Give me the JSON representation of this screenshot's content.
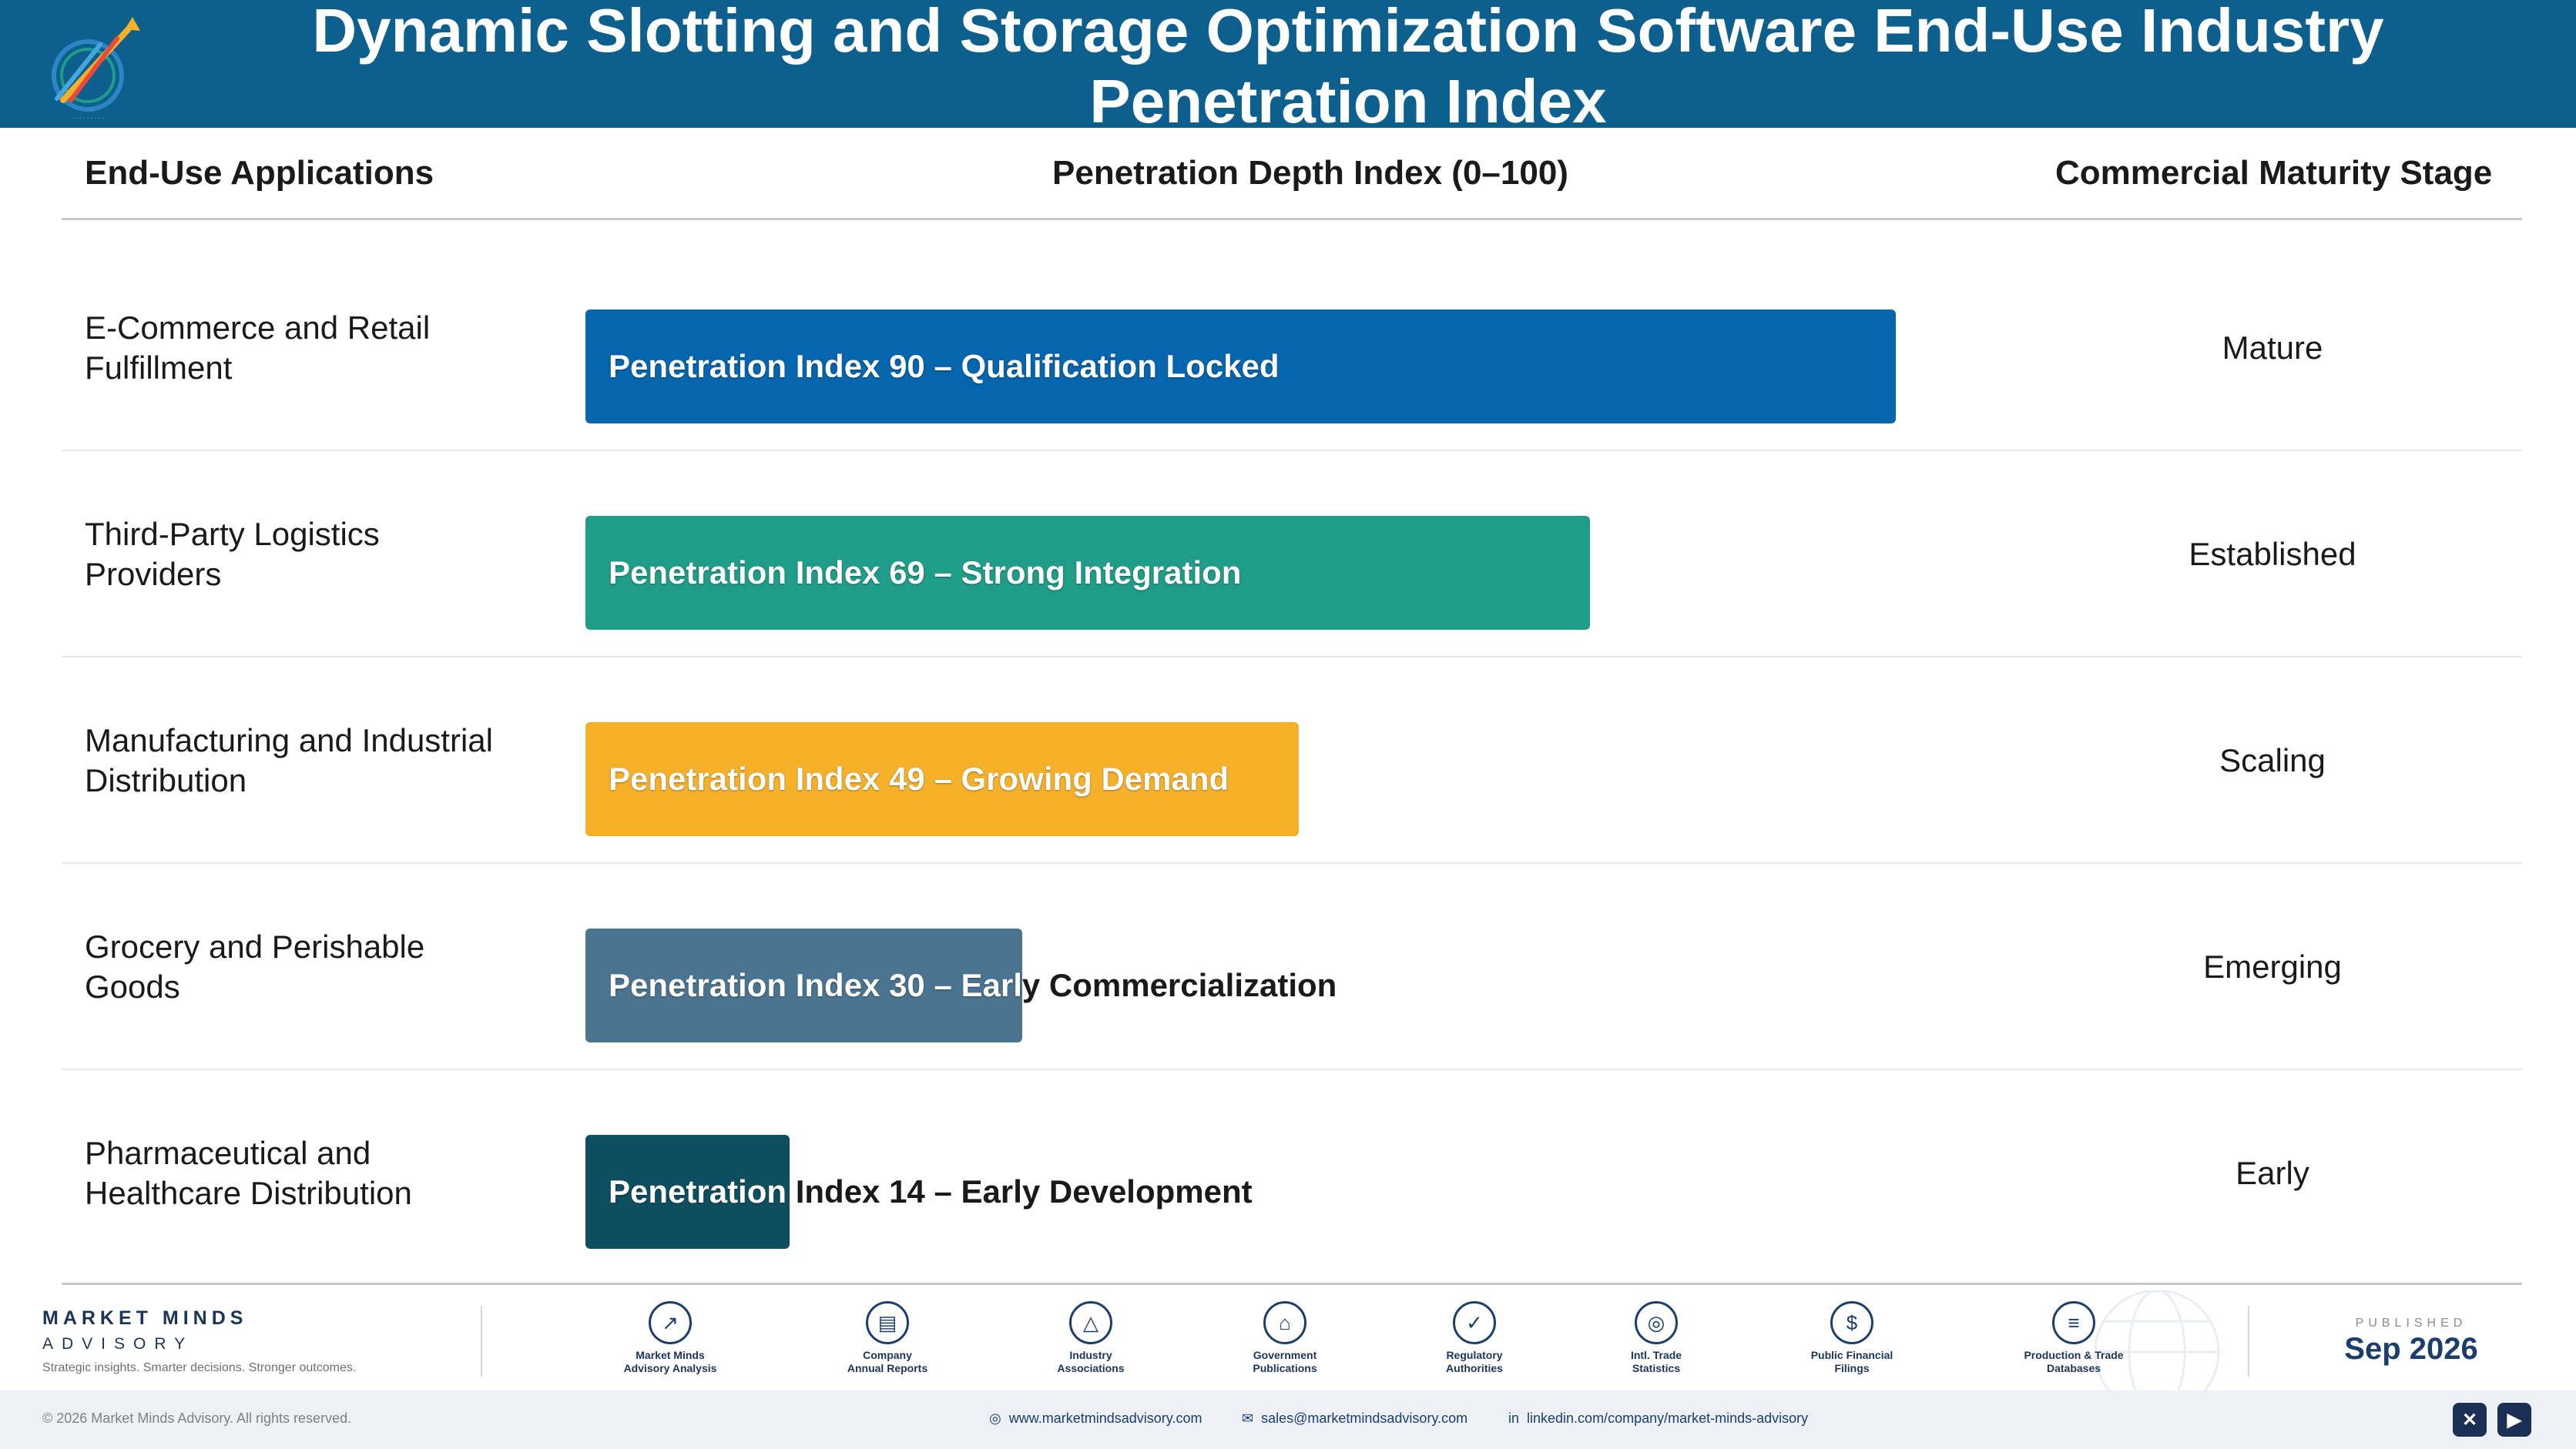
{
  "header": {
    "title": "Dynamic Slotting and Storage Optimization Software End-Use Industry Penetration Index",
    "logo_icon": "market-minds-logo-icon",
    "colors": {
      "background": "#0d5f8e",
      "title": "#ffffff"
    }
  },
  "columns": {
    "applications": "End-Use Applications",
    "index": "Penetration Depth Index (0–100)",
    "stage": "Commercial Maturity Stage"
  },
  "chart_data": {
    "type": "bar",
    "orientation": "horizontal",
    "title": "Dynamic Slotting and Storage Optimization Software End-Use Industry Penetration Index",
    "xlabel": "Penetration Depth Index (0–100)",
    "xlim": [
      0,
      100
    ],
    "grid": false,
    "categories": [
      "E-Commerce and Retail Fulfillment",
      "Third-Party Logistics Providers",
      "Manufacturing and Industrial Distribution",
      "Grocery and Perishable Goods",
      "Pharmaceutical and Healthcare Distribution"
    ],
    "values": [
      90,
      69,
      49,
      30,
      14
    ],
    "labels": [
      "Penetration Index 90 – Qualification Locked",
      "Penetration Index 69 – Strong Integration",
      "Penetration Index 49 – Growing Demand",
      "Penetration Index 30 – Early Commercialization",
      "Penetration Index 14 – Early Development"
    ],
    "stages": [
      "Mature",
      "Established",
      "Scaling",
      "Emerging",
      "Early"
    ],
    "colors": [
      "#0565ad",
      "#1f9d88",
      "#f6b12b",
      "#4a7490",
      "#0e4f5f"
    ]
  },
  "footer": {
    "brand_name": "MARKET MINDS",
    "brand_sub": "ADVISORY",
    "tagline": "Strategic insights. Smarter decisions. Stronger outcomes.",
    "sources": [
      {
        "label": "Market Minds\nAdvisory Analysis",
        "icon": "trend-chart-icon",
        "glyph": "↗"
      },
      {
        "label": "Company\nAnnual Reports",
        "icon": "document-icon",
        "glyph": "▤"
      },
      {
        "label": "Industry\nAssociations",
        "icon": "network-icon",
        "glyph": "△"
      },
      {
        "label": "Government\nPublications",
        "icon": "government-building-icon",
        "glyph": "⌂"
      },
      {
        "label": "Regulatory\nAuthorities",
        "icon": "shield-check-icon",
        "glyph": "✓"
      },
      {
        "label": "Intl. Trade\nStatistics",
        "icon": "globe-icon",
        "glyph": "◎"
      },
      {
        "label": "Public Financial\nFilings",
        "icon": "dollar-coin-icon",
        "glyph": "$"
      },
      {
        "label": "Production & Trade\nDatabases",
        "icon": "database-icon",
        "glyph": "≡"
      }
    ],
    "published_label": "PUBLISHED",
    "published_date": "Sep 2026",
    "copyright": "© 2026 Market Minds Advisory. All rights reserved.",
    "website": "www.marketmindsadvisory.com",
    "email": "sales@marketmindsadvisory.com",
    "linkedin": "linkedin.com/company/market-minds-advisory",
    "social": [
      {
        "icon": "x-twitter-icon",
        "glyph": "✕"
      },
      {
        "icon": "youtube-icon",
        "glyph": "▶"
      }
    ]
  }
}
